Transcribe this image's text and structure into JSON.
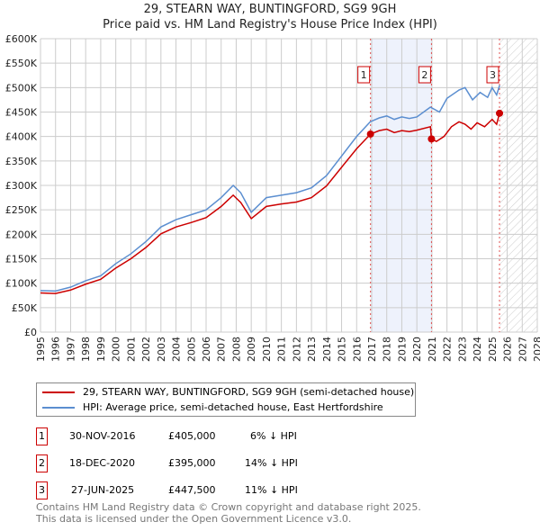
{
  "chart_data": {
    "type": "line",
    "title": "29, STEARN WAY, BUNTINGFORD, SG9 9GH",
    "subtitle": "Price paid vs. HM Land Registry's House Price Index (HPI)",
    "xlim": [
      1995,
      2028
    ],
    "ylim": [
      0,
      600000
    ],
    "x_ticks": [
      "1995",
      "1996",
      "1997",
      "1998",
      "1999",
      "2000",
      "2001",
      "2002",
      "2003",
      "2004",
      "2005",
      "2006",
      "2007",
      "2008",
      "2009",
      "2010",
      "2011",
      "2012",
      "2013",
      "2014",
      "2015",
      "2016",
      "2017",
      "2018",
      "2019",
      "2020",
      "2021",
      "2022",
      "2023",
      "2024",
      "2025",
      "2026",
      "2027",
      "2028"
    ],
    "y_ticks": [
      "£0",
      "£50K",
      "£100K",
      "£150K",
      "£200K",
      "£250K",
      "£300K",
      "£350K",
      "£400K",
      "£450K",
      "£500K",
      "£550K",
      "£600K"
    ],
    "grid": true,
    "series": [
      {
        "name": "29, STEARN WAY, BUNTINGFORD, SG9 9GH (semi-detached house)",
        "color": "#cc0000",
        "points": [
          [
            1995,
            80000
          ],
          [
            1996,
            79000
          ],
          [
            1997,
            86000
          ],
          [
            1998,
            98000
          ],
          [
            1999,
            108000
          ],
          [
            2000,
            131000
          ],
          [
            2001,
            150000
          ],
          [
            2002,
            173000
          ],
          [
            2003,
            201000
          ],
          [
            2004,
            215000
          ],
          [
            2005,
            224000
          ],
          [
            2006,
            234000
          ],
          [
            2007,
            257000
          ],
          [
            2007.8,
            280000
          ],
          [
            2008.3,
            265000
          ],
          [
            2009,
            232000
          ],
          [
            2010,
            257000
          ],
          [
            2011,
            262000
          ],
          [
            2012,
            266000
          ],
          [
            2013,
            275000
          ],
          [
            2014,
            299000
          ],
          [
            2015,
            337000
          ],
          [
            2016,
            375000
          ],
          [
            2016.92,
            405000
          ],
          [
            2017.5,
            412000
          ],
          [
            2018,
            415000
          ],
          [
            2018.5,
            408000
          ],
          [
            2019,
            412000
          ],
          [
            2019.5,
            410000
          ],
          [
            2020,
            413000
          ],
          [
            2020.9,
            420000
          ],
          [
            2020.97,
            395000
          ],
          [
            2021.3,
            390000
          ],
          [
            2021.8,
            400000
          ],
          [
            2022.3,
            420000
          ],
          [
            2022.8,
            430000
          ],
          [
            2023.2,
            425000
          ],
          [
            2023.6,
            415000
          ],
          [
            2024,
            428000
          ],
          [
            2024.5,
            420000
          ],
          [
            2025,
            435000
          ],
          [
            2025.3,
            425000
          ],
          [
            2025.49,
            447500
          ]
        ]
      },
      {
        "name": "HPI: Average price, semi-detached house, East Hertfordshire",
        "color": "#5b8ed0",
        "points": [
          [
            1995,
            85000
          ],
          [
            1996,
            84000
          ],
          [
            1997,
            92000
          ],
          [
            1998,
            105000
          ],
          [
            1999,
            115000
          ],
          [
            2000,
            140000
          ],
          [
            2001,
            160000
          ],
          [
            2002,
            185000
          ],
          [
            2003,
            215000
          ],
          [
            2004,
            230000
          ],
          [
            2005,
            240000
          ],
          [
            2006,
            250000
          ],
          [
            2007,
            275000
          ],
          [
            2007.8,
            300000
          ],
          [
            2008.3,
            285000
          ],
          [
            2009,
            245000
          ],
          [
            2010,
            275000
          ],
          [
            2011,
            280000
          ],
          [
            2012,
            285000
          ],
          [
            2013,
            295000
          ],
          [
            2014,
            320000
          ],
          [
            2015,
            360000
          ],
          [
            2016,
            400000
          ],
          [
            2016.9,
            430000
          ],
          [
            2017.5,
            438000
          ],
          [
            2018,
            442000
          ],
          [
            2018.5,
            435000
          ],
          [
            2019,
            440000
          ],
          [
            2019.5,
            437000
          ],
          [
            2020,
            440000
          ],
          [
            2020.9,
            460000
          ],
          [
            2021.5,
            450000
          ],
          [
            2022,
            478000
          ],
          [
            2022.8,
            495000
          ],
          [
            2023.2,
            500000
          ],
          [
            2023.7,
            475000
          ],
          [
            2024.2,
            490000
          ],
          [
            2024.7,
            480000
          ],
          [
            2025,
            500000
          ],
          [
            2025.3,
            485000
          ],
          [
            2025.5,
            505000
          ]
        ]
      }
    ],
    "sales": [
      {
        "n": "1",
        "x": 2016.92,
        "y": 405000
      },
      {
        "n": "2",
        "x": 2020.97,
        "y": 395000
      },
      {
        "n": "3",
        "x": 2025.49,
        "y": 447500
      }
    ],
    "shaded_range": [
      2016.92,
      2020.97
    ],
    "forecast_hatch_from": 2025.49
  },
  "legend": {
    "red": "29, STEARN WAY, BUNTINGFORD, SG9 9GH (semi-detached house)",
    "blue": "HPI: Average price, semi-detached house, East Hertfordshire"
  },
  "table": [
    {
      "n": "1",
      "date": "30-NOV-2016",
      "price": "£405,000",
      "diff": "6% ↓ HPI"
    },
    {
      "n": "2",
      "date": "18-DEC-2020",
      "price": "£395,000",
      "diff": "14% ↓ HPI"
    },
    {
      "n": "3",
      "date": "27-JUN-2025",
      "price": "£447,500",
      "diff": "11% ↓ HPI"
    }
  ],
  "footer": [
    "Contains HM Land Registry data © Crown copyright and database right 2025.",
    "This data is licensed under the Open Government Licence v3.0."
  ]
}
